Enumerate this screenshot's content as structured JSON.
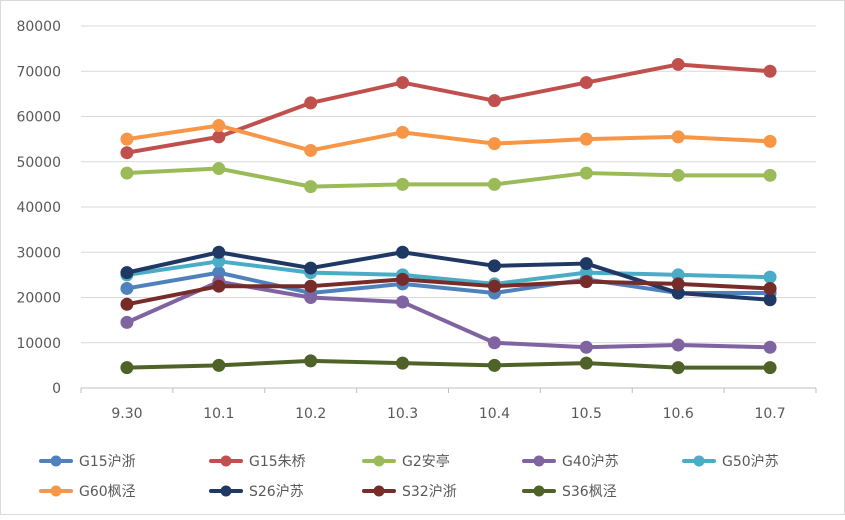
{
  "chart_data": {
    "type": "line",
    "title": "",
    "xlabel": "",
    "ylabel": "",
    "ylim": [
      0,
      80000
    ],
    "yticks": [
      0,
      10000,
      20000,
      30000,
      40000,
      50000,
      60000,
      70000,
      80000
    ],
    "grid": true,
    "legend_position": "bottom",
    "categories": [
      "9.30",
      "10.1",
      "10.2",
      "10.3",
      "10.4",
      "10.5",
      "10.6",
      "10.7"
    ],
    "series": [
      {
        "name": "G15沪浙",
        "color": "#4F81BD",
        "values": [
          22000,
          25500,
          21000,
          23000,
          21000,
          24000,
          21000,
          21000
        ]
      },
      {
        "name": "G15朱桥",
        "color": "#C0504D",
        "values": [
          52000,
          55500,
          63000,
          67500,
          63500,
          67500,
          71500,
          70000
        ]
      },
      {
        "name": "G2安亭",
        "color": "#9BBB59",
        "values": [
          47500,
          48500,
          44500,
          45000,
          45000,
          47500,
          47000,
          47000
        ]
      },
      {
        "name": "G40沪苏",
        "color": "#8064A2",
        "values": [
          14500,
          23500,
          20000,
          19000,
          10000,
          9000,
          9500,
          9000
        ]
      },
      {
        "name": "G50沪苏",
        "color": "#4BACC6",
        "values": [
          25000,
          28000,
          25500,
          25000,
          23000,
          25500,
          25000,
          24500
        ]
      },
      {
        "name": "G60枫泾",
        "color": "#F79646",
        "values": [
          55000,
          58000,
          52500,
          56500,
          54000,
          55000,
          55500,
          54500
        ]
      },
      {
        "name": "S26沪苏",
        "color": "#1F3864",
        "values": [
          25500,
          30000,
          26500,
          30000,
          27000,
          27500,
          21000,
          19500
        ]
      },
      {
        "name": "S32沪浙",
        "color": "#772C2A",
        "values": [
          18500,
          22500,
          22500,
          24000,
          22500,
          23500,
          23000,
          22000
        ]
      },
      {
        "name": "S36枫泾",
        "color": "#4F6228",
        "values": [
          4500,
          5000,
          6000,
          5500,
          5000,
          5500,
          4500,
          4500
        ]
      }
    ]
  }
}
